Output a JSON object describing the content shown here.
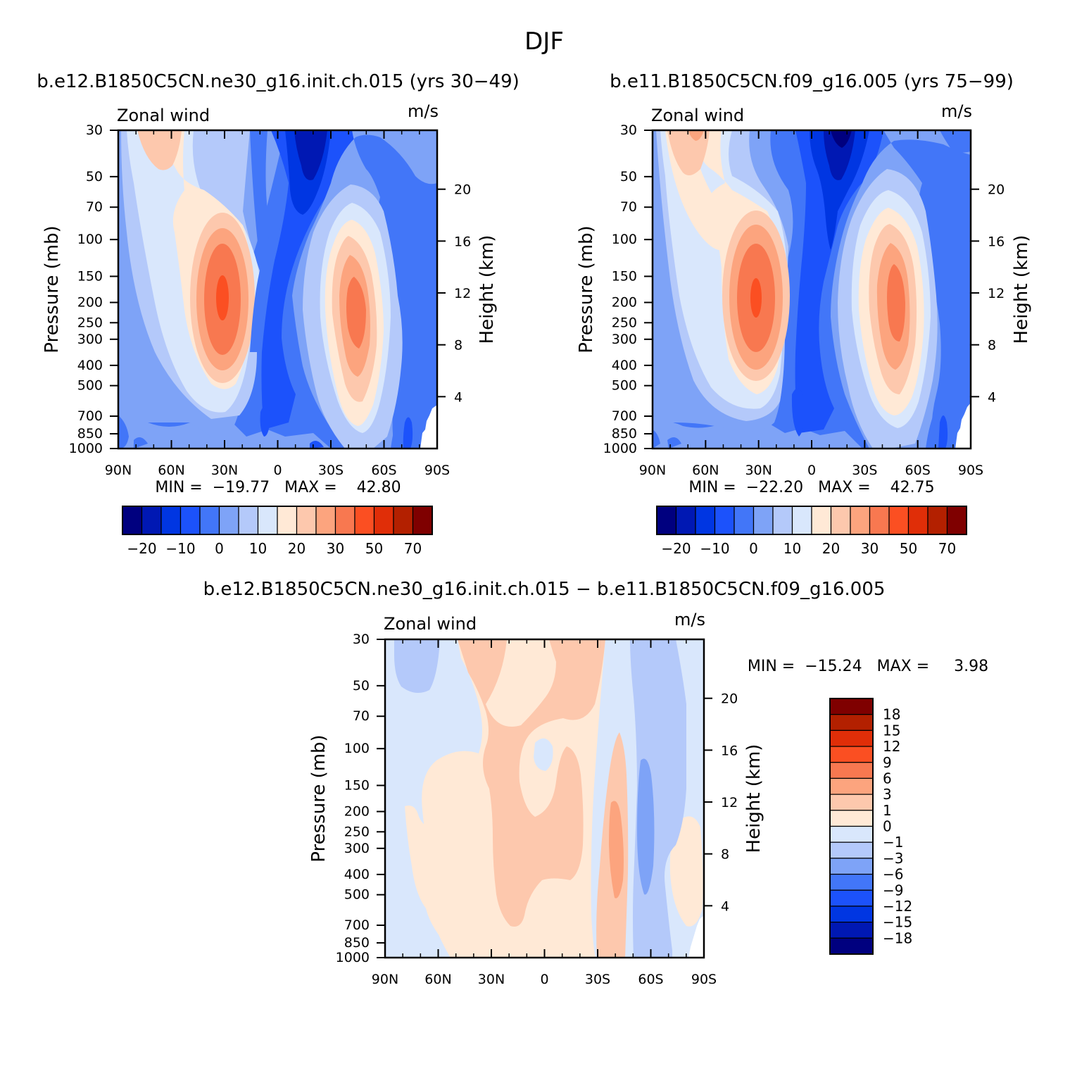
{
  "figure_title": "DJF",
  "colors": {
    "top_palette": [
      "#00007f",
      "#0018b3",
      "#0036e2",
      "#1c52fb",
      "#4276f8",
      "#7ea3f7",
      "#b4c9fa",
      "#d9e7fc",
      "#ffe9d6",
      "#fdc8ad",
      "#fca47e",
      "#f87850",
      "#fb4f22",
      "#e02e08",
      "#b32000",
      "#7f0000"
    ],
    "diff_palette": [
      "#00007f",
      "#0018b3",
      "#0036e2",
      "#1c52fb",
      "#4276f8",
      "#7ea3f7",
      "#b4c9fa",
      "#d9e7fc",
      "#ffe9d6",
      "#fdc8ad",
      "#fca47e",
      "#f87850",
      "#fb4f22",
      "#e02e08",
      "#b32000",
      "#7f0000"
    ]
  },
  "chart_data": [
    {
      "type": "heatmap",
      "title": "b.e12.B1850C5CN.ne30_g16.init.ch.015 (yrs 30−49)",
      "left_label": "Zonal wind",
      "units": "m/s",
      "ylabel": "Pressure (mb)",
      "ylabel_right": "Height (km)",
      "x_ticks": [
        "90N",
        "60N",
        "30N",
        "0",
        "30S",
        "60S",
        "90S"
      ],
      "y_ticks": [
        "30",
        "50",
        "70",
        "100",
        "150",
        "200",
        "250",
        "300",
        "400",
        "500",
        "700",
        "850",
        "1000"
      ],
      "y_right_ticks": [
        "20",
        "16",
        "12",
        "8",
        "4"
      ],
      "minmax": "MIN =  −19.77   MAX =    42.80",
      "colorbar_labels": [
        "−20",
        "−10",
        "0",
        "10",
        "20",
        "30",
        "50",
        "70"
      ],
      "jets": [
        {
          "location": "30N",
          "pressure": 200,
          "max": 42.8
        },
        {
          "location": "45S",
          "pressure": 200,
          "max": 38
        }
      ],
      "min": -19.77,
      "max": 42.8
    },
    {
      "type": "heatmap",
      "title": "b.e11.B1850C5CN.f09_g16.005 (yrs 75−99)",
      "left_label": "Zonal wind",
      "units": "m/s",
      "ylabel": "Pressure (mb)",
      "ylabel_right": "Height (km)",
      "x_ticks": [
        "90N",
        "60N",
        "30N",
        "0",
        "30S",
        "60S",
        "90S"
      ],
      "y_ticks": [
        "30",
        "50",
        "70",
        "100",
        "150",
        "200",
        "250",
        "300",
        "400",
        "500",
        "700",
        "850",
        "1000"
      ],
      "y_right_ticks": [
        "20",
        "16",
        "12",
        "8",
        "4"
      ],
      "minmax": "MIN =  −22.20   MAX =    42.75",
      "colorbar_labels": [
        "−20",
        "−10",
        "0",
        "10",
        "20",
        "30",
        "50",
        "70"
      ],
      "min": -22.2,
      "max": 42.75
    },
    {
      "type": "heatmap",
      "title": "b.e12.B1850C5CN.ne30_g16.init.ch.015 − b.e11.B1850C5CN.f09_g16.005",
      "left_label": "Zonal wind",
      "units": "m/s",
      "ylabel": "Pressure (mb)",
      "ylabel_right": "Height (km)",
      "x_ticks": [
        "90N",
        "60N",
        "30N",
        "0",
        "30S",
        "60S",
        "90S"
      ],
      "y_ticks": [
        "30",
        "50",
        "70",
        "100",
        "150",
        "200",
        "250",
        "300",
        "400",
        "500",
        "700",
        "850",
        "1000"
      ],
      "y_right_ticks": [
        "20",
        "16",
        "12",
        "8",
        "4"
      ],
      "minmax": "MIN =  −15.24   MAX =     3.98",
      "colorbar_labels": [
        "18",
        "15",
        "12",
        "9",
        "6",
        "3",
        "1",
        "0",
        "−1",
        "−3",
        "−6",
        "−9",
        "−12",
        "−15",
        "−18"
      ],
      "min": -15.24,
      "max": 3.98
    }
  ]
}
